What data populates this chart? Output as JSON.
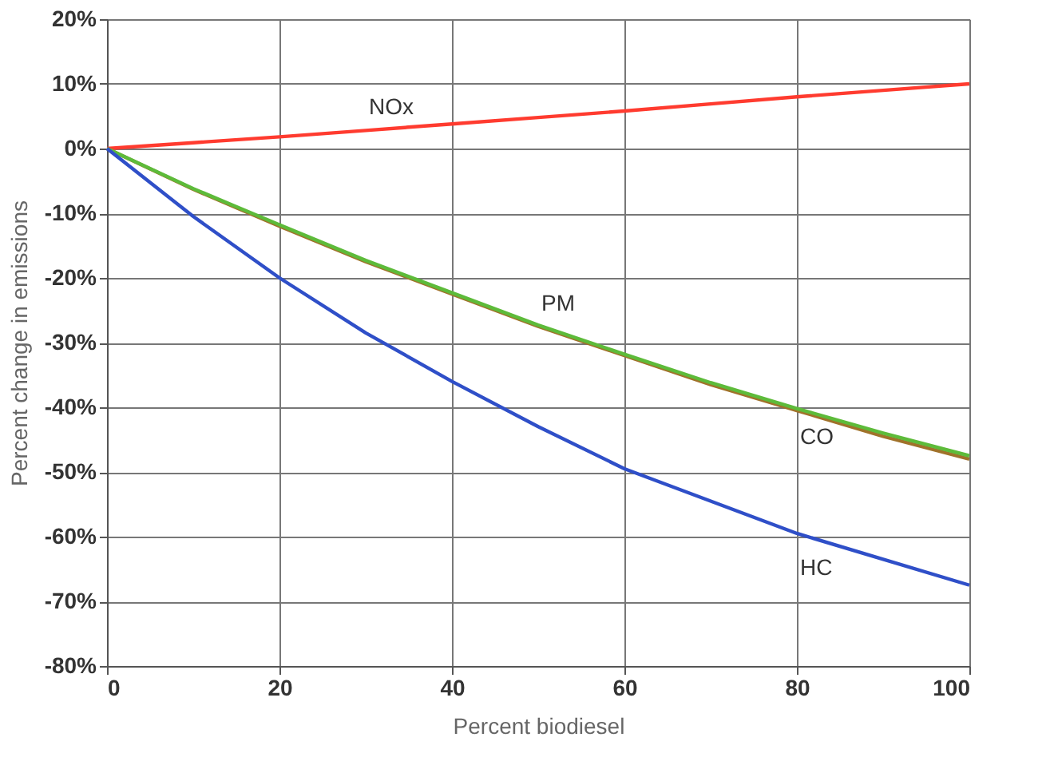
{
  "chart_data": {
    "type": "line",
    "xlabel": "Percent biodiesel",
    "ylabel": "Percent change in emissions",
    "x": [
      0,
      10,
      20,
      30,
      40,
      50,
      60,
      70,
      80,
      90,
      100
    ],
    "series": [
      {
        "name": "NOx",
        "color": "#ff3b2f",
        "values": [
          0,
          0.9,
          1.8,
          2.8,
          3.8,
          4.8,
          5.8,
          6.9,
          8,
          9,
          10
        ]
      },
      {
        "name": "PM",
        "color": "#a0722a",
        "values": [
          0,
          -6.3,
          -12,
          -17.5,
          -22.5,
          -27.5,
          -32,
          -36.5,
          -40.5,
          -44.5,
          -48
        ]
      },
      {
        "name": "CO",
        "color": "#5dbb3a",
        "values": [
          0,
          -6.2,
          -11.8,
          -17.3,
          -22.3,
          -27.3,
          -31.8,
          -36.2,
          -40.2,
          -44,
          -47.5
        ]
      },
      {
        "name": "HC",
        "color": "#2f4fc8",
        "values": [
          0,
          -10.5,
          -20,
          -28.5,
          -36,
          -43,
          -49.5,
          -54.5,
          -59.5,
          -63.5,
          -67.5
        ]
      }
    ],
    "xlim": [
      0,
      100
    ],
    "xticks": [
      0,
      20,
      40,
      60,
      80,
      100
    ],
    "ylim": [
      -80,
      20
    ],
    "yticks": [
      {
        "value": 20,
        "label": "20%"
      },
      {
        "value": 10,
        "label": "10%"
      },
      {
        "value": 0,
        "label": "0%"
      },
      {
        "value": -10,
        "label": "-10%"
      },
      {
        "value": -20,
        "label": "-20%"
      },
      {
        "value": -30,
        "label": "-30%"
      },
      {
        "value": -40,
        "label": "-40%"
      },
      {
        "value": -50,
        "label": "-50%"
      },
      {
        "value": -60,
        "label": "-60%"
      },
      {
        "value": -70,
        "label": "-70%"
      },
      {
        "value": -80,
        "label": "-80%"
      }
    ],
    "grid": true,
    "marker": "none",
    "line_style": "solid"
  }
}
